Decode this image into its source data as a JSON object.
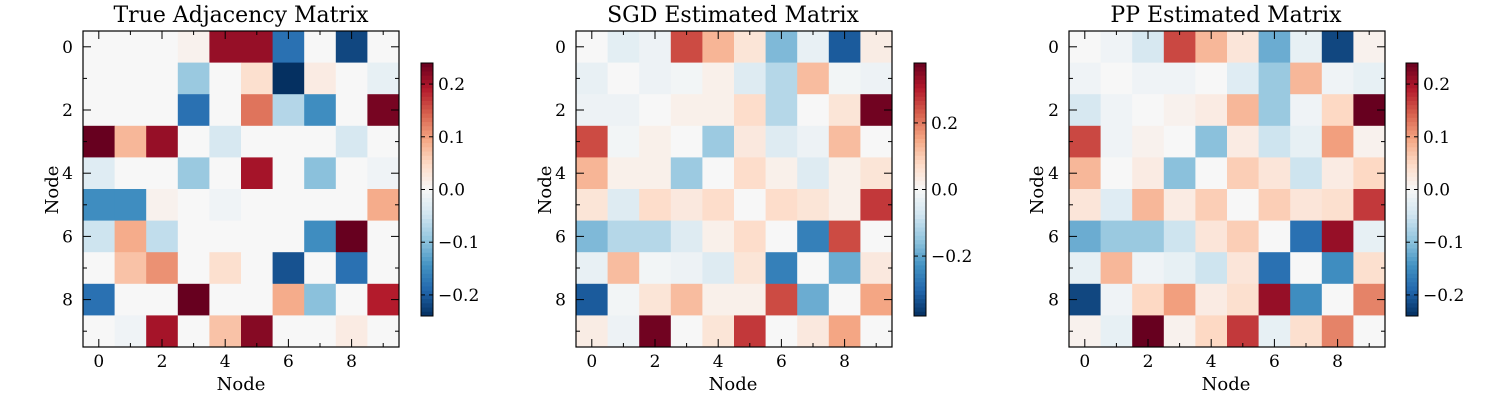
{
  "colors": {
    "colormap": "RdBu_r",
    "stops": [
      "#053061",
      "#2166ac",
      "#4393c3",
      "#92c5de",
      "#d1e5f0",
      "#f7f7f7",
      "#fddbc7",
      "#f4a582",
      "#d6604d",
      "#b2182b",
      "#67001f"
    ]
  },
  "chart_data": [
    {
      "type": "heatmap",
      "title": "True Adjacency Matrix",
      "xlabel": "Node",
      "ylabel": "Node",
      "x_ticks": [
        "0",
        "2",
        "4",
        "6",
        "8"
      ],
      "y_ticks": [
        "0",
        "2",
        "4",
        "6",
        "8"
      ],
      "vmin": -0.24,
      "vmax": 0.24,
      "colorbar_ticks": [
        "−0.2",
        "−0.1",
        "0.0",
        "0.1",
        "0.2"
      ],
      "colorbar_tick_values": [
        -0.2,
        -0.1,
        0.0,
        0.1,
        0.2
      ],
      "matrix": [
        [
          0.0,
          0.0,
          0.0,
          0.01,
          0.21,
          0.21,
          -0.18,
          0.0,
          -0.22,
          0.0
        ],
        [
          0.0,
          0.0,
          0.0,
          -0.09,
          0.0,
          0.04,
          -0.24,
          0.02,
          0.0,
          -0.02
        ],
        [
          0.0,
          0.0,
          0.0,
          -0.18,
          0.0,
          0.13,
          -0.07,
          -0.15,
          0.0,
          0.23
        ],
        [
          0.24,
          0.08,
          0.21,
          0.0,
          -0.04,
          0.0,
          0.0,
          0.0,
          -0.04,
          0.0
        ],
        [
          -0.03,
          0.0,
          0.0,
          -0.09,
          0.0,
          0.2,
          0.0,
          -0.1,
          0.0,
          -0.01
        ],
        [
          -0.15,
          -0.15,
          0.01,
          0.0,
          -0.01,
          0.0,
          0.0,
          0.0,
          0.0,
          0.09
        ],
        [
          -0.05,
          0.09,
          -0.06,
          0.0,
          0.0,
          0.0,
          0.0,
          -0.15,
          0.24,
          0.0
        ],
        [
          0.0,
          0.07,
          0.11,
          0.0,
          0.04,
          0.0,
          -0.21,
          0.0,
          -0.18,
          0.0
        ],
        [
          -0.18,
          0.0,
          0.0,
          0.24,
          0.0,
          0.0,
          0.09,
          -0.1,
          0.0,
          0.19
        ],
        [
          0.0,
          -0.01,
          0.2,
          0.0,
          0.07,
          0.22,
          0.0,
          0.0,
          0.02,
          0.0
        ]
      ]
    },
    {
      "type": "heatmap",
      "title": "SGD Estimated Matrix",
      "xlabel": "Node",
      "ylabel": "Node",
      "x_ticks": [
        "0",
        "2",
        "4",
        "6",
        "8"
      ],
      "y_ticks": [
        "0",
        "2",
        "4",
        "6",
        "8"
      ],
      "vmin": -0.38,
      "vmax": 0.38,
      "colorbar_ticks": [
        "−0.2",
        "0.0",
        "0.2"
      ],
      "colorbar_tick_values": [
        -0.2,
        0.0,
        0.2
      ],
      "matrix": [
        [
          0.0,
          -0.04,
          -0.02,
          0.25,
          0.13,
          0.05,
          -0.17,
          -0.03,
          -0.32,
          0.03
        ],
        [
          -0.03,
          0.0,
          -0.02,
          -0.01,
          0.02,
          -0.05,
          -0.11,
          0.12,
          -0.01,
          -0.02
        ],
        [
          -0.02,
          -0.02,
          0.0,
          0.02,
          0.02,
          0.07,
          -0.11,
          0.0,
          0.05,
          0.37
        ],
        [
          0.25,
          -0.01,
          0.02,
          0.0,
          -0.14,
          0.04,
          -0.05,
          -0.02,
          0.12,
          0.0
        ],
        [
          0.13,
          0.02,
          0.02,
          -0.14,
          0.0,
          0.07,
          0.02,
          -0.05,
          0.02,
          0.05
        ],
        [
          0.05,
          -0.05,
          0.07,
          0.04,
          0.07,
          0.0,
          0.07,
          0.05,
          0.02,
          0.27
        ],
        [
          -0.17,
          -0.11,
          -0.11,
          -0.05,
          0.02,
          0.07,
          0.0,
          -0.26,
          0.25,
          0.0
        ],
        [
          -0.03,
          0.12,
          -0.01,
          -0.02,
          -0.05,
          0.05,
          -0.26,
          0.0,
          -0.19,
          0.04
        ],
        [
          -0.32,
          -0.01,
          0.05,
          0.12,
          0.02,
          0.02,
          0.25,
          -0.19,
          0.0,
          0.15
        ],
        [
          0.03,
          -0.02,
          0.37,
          0.0,
          0.05,
          0.27,
          0.0,
          0.04,
          0.15,
          0.0
        ]
      ]
    },
    {
      "type": "heatmap",
      "title": "PP Estimated Matrix",
      "xlabel": "Node",
      "ylabel": "Node",
      "x_ticks": [
        "0",
        "2",
        "4",
        "6",
        "8"
      ],
      "y_ticks": [
        "0",
        "2",
        "4",
        "6",
        "8"
      ],
      "vmin": -0.24,
      "vmax": 0.24,
      "colorbar_ticks": [
        "−0.2",
        "−0.1",
        "0.0",
        "0.1",
        "0.2"
      ],
      "colorbar_tick_values": [
        -0.2,
        -0.1,
        0.0,
        0.1,
        0.2
      ],
      "matrix": [
        [
          0.0,
          -0.01,
          -0.04,
          0.16,
          0.08,
          0.03,
          -0.12,
          -0.02,
          -0.22,
          0.01
        ],
        [
          -0.01,
          0.0,
          -0.01,
          -0.01,
          0.0,
          -0.03,
          -0.09,
          0.08,
          -0.01,
          -0.02
        ],
        [
          -0.04,
          -0.01,
          0.0,
          0.01,
          0.02,
          0.08,
          -0.09,
          -0.01,
          0.05,
          0.24
        ],
        [
          0.16,
          -0.01,
          0.01,
          0.0,
          -0.1,
          0.02,
          -0.05,
          -0.02,
          0.1,
          0.01
        ],
        [
          0.08,
          0.0,
          0.02,
          -0.1,
          0.0,
          0.06,
          0.03,
          -0.05,
          0.02,
          0.05
        ],
        [
          0.03,
          -0.03,
          0.08,
          0.02,
          0.06,
          0.0,
          0.06,
          0.03,
          0.04,
          0.17
        ],
        [
          -0.12,
          -0.09,
          -0.09,
          -0.05,
          0.03,
          0.06,
          0.0,
          -0.18,
          0.21,
          -0.02
        ],
        [
          -0.02,
          0.08,
          -0.01,
          -0.02,
          -0.05,
          0.03,
          -0.18,
          0.0,
          -0.15,
          0.04
        ],
        [
          -0.22,
          -0.01,
          0.05,
          0.1,
          0.02,
          0.04,
          0.21,
          -0.15,
          0.0,
          0.12
        ],
        [
          0.01,
          -0.02,
          0.24,
          0.01,
          0.05,
          0.17,
          -0.02,
          0.04,
          0.12,
          0.0
        ]
      ]
    }
  ]
}
